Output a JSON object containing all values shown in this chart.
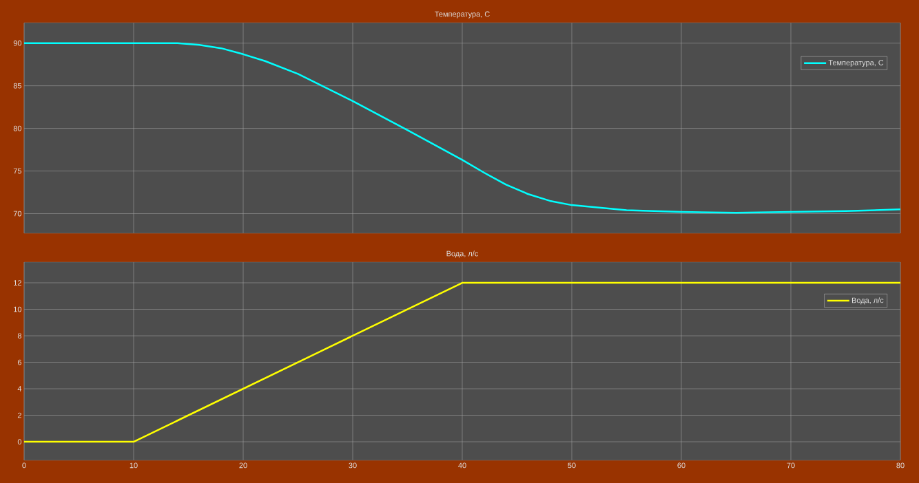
{
  "chart_data": [
    {
      "type": "line",
      "title": "Температура, C",
      "x": [
        0,
        14,
        16,
        18,
        20,
        22,
        25,
        30,
        35,
        40,
        42,
        44,
        46,
        48,
        50,
        55,
        60,
        65,
        70,
        75,
        80
      ],
      "series": [
        {
          "name": "Температура, C",
          "color": "#00ffff",
          "values": [
            90,
            90,
            89.8,
            89.4,
            88.7,
            87.9,
            86.4,
            83.2,
            79.8,
            76.3,
            74.8,
            73.4,
            72.3,
            71.5,
            71.0,
            70.4,
            70.2,
            70.1,
            70.2,
            70.3,
            70.5
          ]
        }
      ],
      "xlim": [
        0,
        80
      ],
      "ylim": [
        67.7,
        92.4
      ],
      "xticks": [
        0,
        10,
        20,
        30,
        40,
        50,
        60,
        70,
        80
      ],
      "yticks": [
        70,
        75,
        80,
        85,
        90
      ],
      "tick_labels": "y",
      "grid": true,
      "legend": "top right"
    },
    {
      "type": "line",
      "title": "Вода, л/с",
      "x": [
        0,
        10,
        40,
        80
      ],
      "series": [
        {
          "name": "Вода, л/с",
          "color": "#ffff00",
          "values": [
            0,
            0,
            12,
            12
          ]
        }
      ],
      "xlim": [
        0,
        80
      ],
      "ylim": [
        -1.4,
        13.56
      ],
      "xticks": [
        0,
        10,
        20,
        30,
        40,
        50,
        60,
        70,
        80
      ],
      "yticks": [
        0,
        2,
        4,
        6,
        8,
        10,
        12
      ],
      "grid": true,
      "legend": "top right"
    }
  ]
}
